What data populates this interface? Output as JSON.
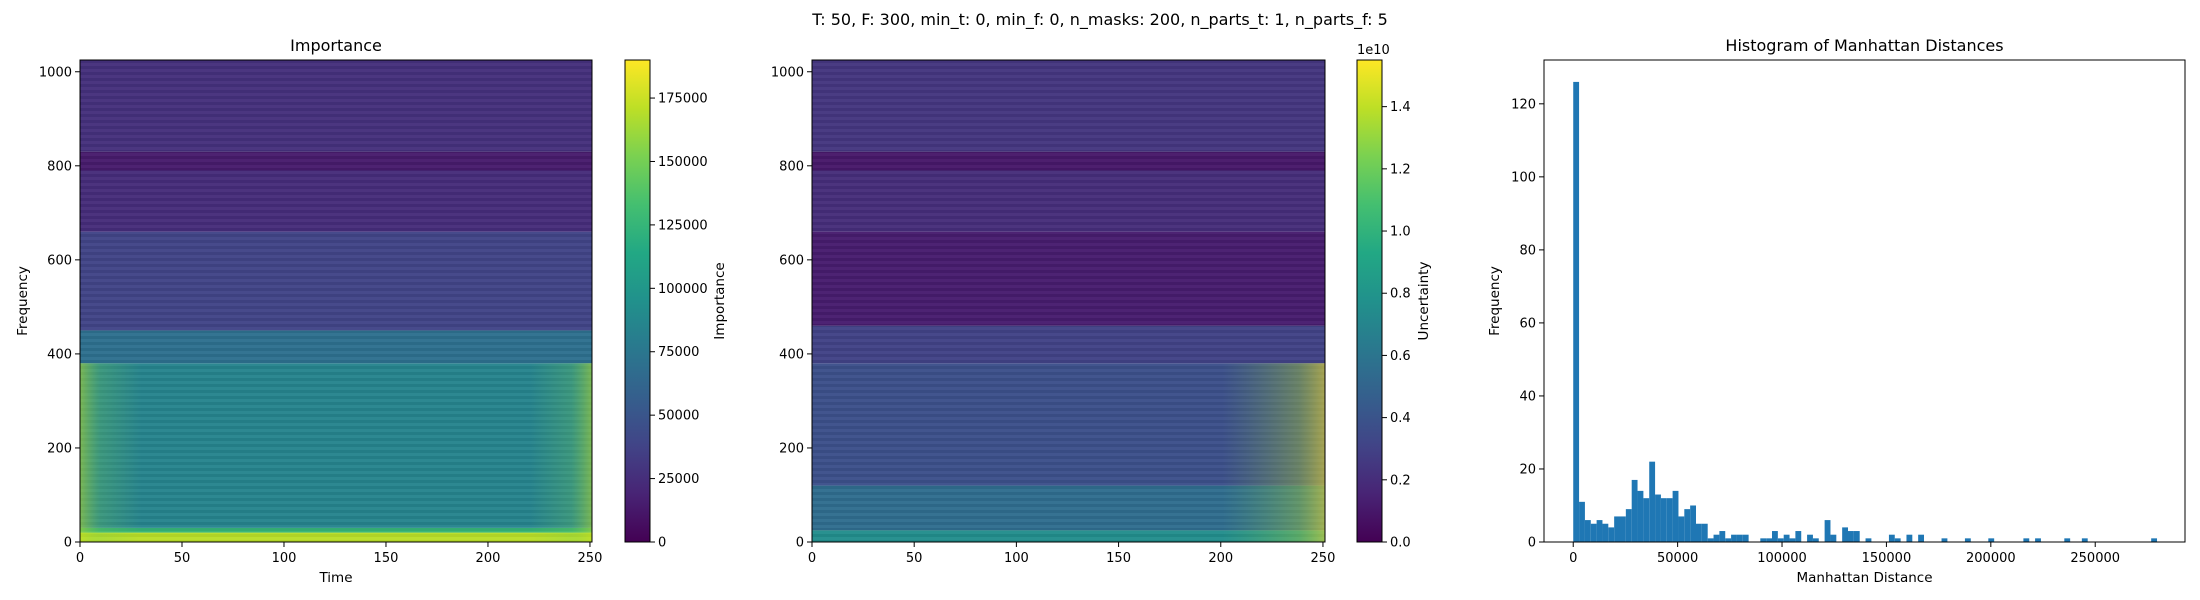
{
  "suptitle": "T: 50, F: 300, min_t: 0, min_f: 0, n_masks: 200, n_parts_t: 1, n_parts_f: 5",
  "chart_data": [
    {
      "type": "heatmap",
      "title": "Importance",
      "xlabel": "Time",
      "ylabel": "Frequency",
      "xlim": [
        0,
        251
      ],
      "ylim": [
        0,
        1025
      ],
      "xticks": [
        "0",
        "50",
        "100",
        "150",
        "200",
        "250"
      ],
      "yticks": [
        "0",
        "200",
        "400",
        "600",
        "800",
        "1000"
      ],
      "colormap": "viridis",
      "colorbar": {
        "label": "Importance",
        "range": [
          0,
          190000
        ],
        "ticks": [
          "0",
          "25000",
          "50000",
          "75000",
          "100000",
          "125000",
          "150000",
          "175000"
        ],
        "offset_text": ""
      },
      "row_profile": [
        {
          "freq_from": 0,
          "freq_to": 20,
          "value": 170000
        },
        {
          "freq_from": 20,
          "freq_to": 30,
          "value": 125000
        },
        {
          "freq_from": 30,
          "freq_to": 380,
          "value": 85000
        },
        {
          "freq_from": 380,
          "freq_to": 450,
          "value": 70000
        },
        {
          "freq_from": 450,
          "freq_to": 660,
          "value": 38000
        },
        {
          "freq_from": 660,
          "freq_to": 790,
          "value": 24000
        },
        {
          "freq_from": 790,
          "freq_to": 830,
          "value": 14000
        },
        {
          "freq_from": 830,
          "freq_to": 1025,
          "value": 26000
        }
      ]
    },
    {
      "type": "heatmap",
      "title": "",
      "xlabel": "",
      "ylabel": "",
      "xlim": [
        0,
        251
      ],
      "ylim": [
        0,
        1025
      ],
      "xticks": [
        "0",
        "50",
        "100",
        "150",
        "200",
        "250"
      ],
      "yticks": [
        "0",
        "200",
        "400",
        "600",
        "800",
        "1000"
      ],
      "colormap": "viridis",
      "colorbar": {
        "label": "Uncertainty",
        "range": [
          0,
          1.55
        ],
        "ticks": [
          "0.0",
          "0.2",
          "0.4",
          "0.6",
          "0.8",
          "1.0",
          "1.2",
          "1.4"
        ],
        "offset_text": "1e10"
      },
      "row_profile": [
        {
          "freq_from": 0,
          "freq_to": 25,
          "value": 0.75
        },
        {
          "freq_from": 25,
          "freq_to": 120,
          "value": 0.55
        },
        {
          "freq_from": 120,
          "freq_to": 380,
          "value": 0.38
        },
        {
          "freq_from": 380,
          "freq_to": 460,
          "value": 0.3
        },
        {
          "freq_from": 460,
          "freq_to": 660,
          "value": 0.12
        },
        {
          "freq_from": 660,
          "freq_to": 790,
          "value": 0.2
        },
        {
          "freq_from": 790,
          "freq_to": 830,
          "value": 0.1
        },
        {
          "freq_from": 830,
          "freq_to": 1025,
          "value": 0.24
        }
      ]
    },
    {
      "type": "bar",
      "title": "Histogram of Manhattan Distances",
      "xlabel": "Manhattan Distance",
      "ylabel": "Frequency",
      "xlim": [
        -14000,
        293000
      ],
      "ylim": [
        0,
        132
      ],
      "xticks": [
        0,
        50000,
        100000,
        150000,
        200000,
        250000
      ],
      "yticks": [
        0,
        20,
        40,
        60,
        80,
        100,
        120
      ],
      "color": "#1f77b4",
      "bin_width": 2800,
      "bins": [
        {
          "x": 0,
          "count": 126
        },
        {
          "x": 2800,
          "count": 11
        },
        {
          "x": 5600,
          "count": 6
        },
        {
          "x": 8400,
          "count": 5
        },
        {
          "x": 11200,
          "count": 6
        },
        {
          "x": 14000,
          "count": 5
        },
        {
          "x": 16800,
          "count": 4
        },
        {
          "x": 19600,
          "count": 7
        },
        {
          "x": 22400,
          "count": 7
        },
        {
          "x": 25200,
          "count": 9
        },
        {
          "x": 28000,
          "count": 17
        },
        {
          "x": 30800,
          "count": 14
        },
        {
          "x": 33600,
          "count": 12
        },
        {
          "x": 36400,
          "count": 22
        },
        {
          "x": 39200,
          "count": 13
        },
        {
          "x": 42000,
          "count": 12
        },
        {
          "x": 44800,
          "count": 12
        },
        {
          "x": 47600,
          "count": 14
        },
        {
          "x": 50400,
          "count": 7
        },
        {
          "x": 53200,
          "count": 9
        },
        {
          "x": 56000,
          "count": 10
        },
        {
          "x": 58800,
          "count": 5
        },
        {
          "x": 61600,
          "count": 5
        },
        {
          "x": 64400,
          "count": 1
        },
        {
          "x": 67200,
          "count": 2
        },
        {
          "x": 70000,
          "count": 3
        },
        {
          "x": 72800,
          "count": 1
        },
        {
          "x": 75600,
          "count": 2
        },
        {
          "x": 78400,
          "count": 2
        },
        {
          "x": 81200,
          "count": 2
        },
        {
          "x": 89600,
          "count": 1
        },
        {
          "x": 92400,
          "count": 1
        },
        {
          "x": 95200,
          "count": 3
        },
        {
          "x": 98000,
          "count": 1
        },
        {
          "x": 100800,
          "count": 2
        },
        {
          "x": 103600,
          "count": 1
        },
        {
          "x": 106400,
          "count": 3
        },
        {
          "x": 112000,
          "count": 2
        },
        {
          "x": 114800,
          "count": 1
        },
        {
          "x": 120400,
          "count": 6
        },
        {
          "x": 123200,
          "count": 2
        },
        {
          "x": 128800,
          "count": 4
        },
        {
          "x": 131600,
          "count": 3
        },
        {
          "x": 134400,
          "count": 3
        },
        {
          "x": 140000,
          "count": 1
        },
        {
          "x": 151200,
          "count": 2
        },
        {
          "x": 154000,
          "count": 1
        },
        {
          "x": 159600,
          "count": 2
        },
        {
          "x": 165200,
          "count": 2
        },
        {
          "x": 176400,
          "count": 1
        },
        {
          "x": 187600,
          "count": 1
        },
        {
          "x": 198800,
          "count": 1
        },
        {
          "x": 215600,
          "count": 1
        },
        {
          "x": 221200,
          "count": 1
        },
        {
          "x": 235200,
          "count": 1
        },
        {
          "x": 243600,
          "count": 1
        },
        {
          "x": 276800,
          "count": 1
        }
      ]
    }
  ]
}
